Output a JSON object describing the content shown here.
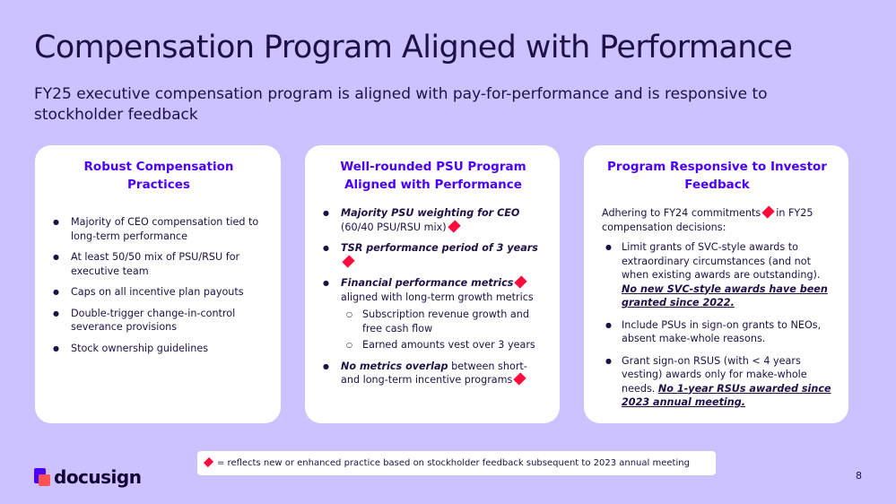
{
  "title": "Compensation Program Aligned with Performance",
  "subtitle": "FY25 executive compensation program is aligned with pay-for-performance and is responsive to stockholder feedback",
  "colors": {
    "background": "#cbc2ff",
    "accent": "#4c00ff",
    "diamond": "#ff0a3c",
    "text": "#1e1146"
  },
  "card1": {
    "title": "Robust Compensation Practices",
    "items": [
      "Majority of CEO compensation tied to long-term performance",
      "At least 50/50 mix of PSU/RSU for executive team",
      "Caps on all incentive plan payouts",
      "Double-trigger change-in-control severance provisions",
      "Stock ownership guidelines"
    ]
  },
  "card2": {
    "title": "Well-rounded PSU Program Aligned with Performance",
    "b1_bold": "Majority PSU weighting for CEO",
    "b1_rest": "(60/40 PSU/RSU mix)",
    "b2_bold": "TSR performance period of 3 years",
    "b3_bold": "Financial performance metrics",
    "b3_rest": "aligned with long-term growth metrics",
    "b3_sub": [
      "Subscription revenue growth and free cash flow",
      "Earned amounts vest over 3 years"
    ],
    "b4_bold": "No metrics overlap",
    "b4_rest": "between short- and long-term incentive programs"
  },
  "card3": {
    "title": "Program Responsive to Investor Feedback",
    "intro_a": "Adhering to FY24 commitments",
    "intro_b": "in FY25 compensation decisions:",
    "b1_text": "Limit grants of SVC-style awards to extraordinary circumstances (and not when existing awards are outstanding).",
    "b1_emph": "No new SVC-style awards have been granted since 2022.",
    "b2_text": "Include PSUs in sign-on grants to NEOs, absent make-whole reasons.",
    "b3_text": "Grant sign-on RSUS (with < 4 years vesting) awards only for make-whole needs.",
    "b3_emph": "No 1-year RSUs awarded since 2023 annual meeting."
  },
  "legend": "= reflects new or enhanced practice based on stockholder feedback subsequent to 2023 annual meeting",
  "logo_text": "docusign",
  "page_number": "8",
  "icons": {
    "marker": "red-diamond-icon",
    "logo": "docusign-logo-icon"
  }
}
